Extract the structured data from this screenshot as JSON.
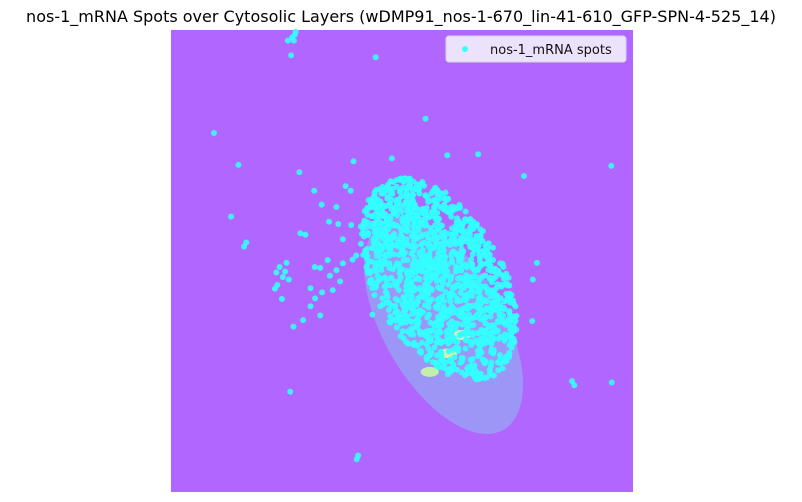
{
  "chart_data": {
    "type": "scatter",
    "title": "nos-1_mRNA Spots over Cytosolic Layers (wDMP91_nos-1-670_lin-41-610_GFP-SPN-4-525_14)",
    "xlabel": "",
    "ylabel": "",
    "axes_visible": false,
    "xlim": [
      0,
      100
    ],
    "ylim": [
      100,
      0
    ],
    "background_color": "#b066ff",
    "legend_position": "top-right",
    "series": [
      {
        "name": "nos-1_mRNA spots",
        "color": "#33ffff",
        "marker": "circle",
        "note_points": "dense cluster inside the elliptical cytosolic region plus scattered outliers",
        "cluster": {
          "center_x": 58,
          "center_y": 58,
          "count": 1400
        },
        "points": [
          [
            26.8,
            1.0
          ],
          [
            27.0,
            0.4
          ],
          [
            26.2,
            1.6
          ],
          [
            25.3,
            2.3
          ],
          [
            26.6,
            2.3
          ],
          [
            26.0,
            5.5
          ],
          [
            44.3,
            5.9
          ],
          [
            9.3,
            22.3
          ],
          [
            55.1,
            19.2
          ],
          [
            59.8,
            27.1
          ],
          [
            66.5,
            26.9
          ],
          [
            47.8,
            27.8
          ],
          [
            14.6,
            29.2
          ],
          [
            27.8,
            30.8
          ],
          [
            76.4,
            31.6
          ],
          [
            95.3,
            29.4
          ],
          [
            39.5,
            28.4
          ],
          [
            37.8,
            33.8
          ],
          [
            38.9,
            34.8
          ],
          [
            31.0,
            34.8
          ],
          [
            32.6,
            37.8
          ],
          [
            13.0,
            40.4
          ],
          [
            34.2,
            41.5
          ],
          [
            28.0,
            44.0
          ],
          [
            29.1,
            44.3
          ],
          [
            16.3,
            46.0
          ],
          [
            15.8,
            46.9
          ],
          [
            25.0,
            50.4
          ],
          [
            23.5,
            51.3
          ],
          [
            31.1,
            51.3
          ],
          [
            24.7,
            52.3
          ],
          [
            22.8,
            52.5
          ],
          [
            34.4,
            53.2
          ],
          [
            24.2,
            53.5
          ],
          [
            25.5,
            54.0
          ],
          [
            23.0,
            55.2
          ],
          [
            22.5,
            56.0
          ],
          [
            32.3,
            51.5
          ],
          [
            33.9,
            49.8
          ],
          [
            35.0,
            56.3
          ],
          [
            30.2,
            55.9
          ],
          [
            32.7,
            56.8
          ],
          [
            36.6,
            54.4
          ],
          [
            35.8,
            52.0
          ],
          [
            37.2,
            50.5
          ],
          [
            39.3,
            49.7
          ],
          [
            40.1,
            48.8
          ],
          [
            30.2,
            59.8
          ],
          [
            31.2,
            58.1
          ],
          [
            32.3,
            61.8
          ],
          [
            28.6,
            62.8
          ],
          [
            24.0,
            58.2
          ],
          [
            37.2,
            45.3
          ],
          [
            36.2,
            42.0
          ],
          [
            39.0,
            42.2
          ],
          [
            42.5,
            38.5
          ],
          [
            43.4,
            40.3
          ],
          [
            35.8,
            38.3
          ],
          [
            26.5,
            64.2
          ],
          [
            64.6,
            65.7
          ],
          [
            95.4,
            76.3
          ],
          [
            43.6,
            61.6
          ],
          [
            78.3,
            54.0
          ],
          [
            79.2,
            50.4
          ],
          [
            78.2,
            63.0
          ],
          [
            86.8,
            76.0
          ],
          [
            87.3,
            76.9
          ],
          [
            25.8,
            78.3
          ],
          [
            40.5,
            92.1
          ],
          [
            40.2,
            92.9
          ]
        ]
      }
    ],
    "layers": [
      {
        "name": "cytosolic layer",
        "shape": "ellipse",
        "center_x": 59,
        "center_y": 64,
        "rx": 13,
        "ry": 26,
        "rotation_deg": -30,
        "color": "#9a9cf5"
      }
    ]
  }
}
